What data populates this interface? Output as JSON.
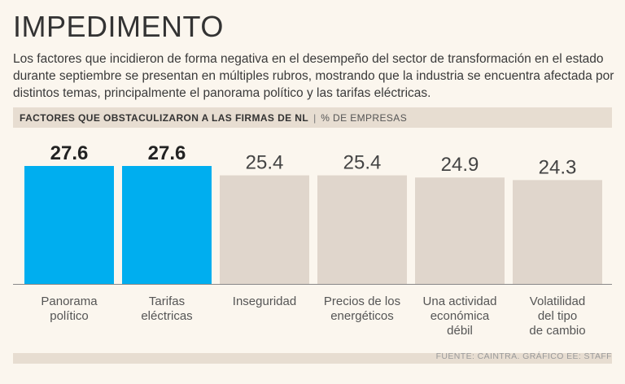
{
  "header": {
    "title": "IMPEDIMENTO",
    "subtitle": "Los factores que incidieron de forma negativa en el desempeño del sector de transformación en el estado durante septiembre se presentan en múltiples rubros, mostrando que la industria se encuentra afectada por distintos temas, principalmente el panorama político y las tarifas eléctricas."
  },
  "chart_header": {
    "label": "FACTORES QUE OBSTACULIZARON A LAS FIRMAS DE NL",
    "separator": "|",
    "unit": "% DE EMPRESAS"
  },
  "footer": {
    "source": "FUENTE: CAINTRA.  GRÁFICO EE: STAFF"
  },
  "colors": {
    "highlight": "#00aeef",
    "default": "#e0d6cc",
    "axis": "#888888"
  },
  "chart_data": {
    "type": "bar",
    "title": "FACTORES QUE OBSTACULIZARON A LAS FIRMAS DE NL",
    "ylabel": "% DE EMPRESAS",
    "ylim": [
      0,
      27.6
    ],
    "categories": [
      [
        "Panorama",
        "político"
      ],
      [
        "Tarifas",
        "eléctricas"
      ],
      [
        "Inseguridad"
      ],
      [
        "Precios de los",
        "energéticos"
      ],
      [
        "Una actividad",
        "económica",
        "débil"
      ],
      [
        "Volatilidad",
        "del tipo",
        "de cambio"
      ]
    ],
    "values": [
      27.6,
      27.6,
      25.4,
      25.4,
      24.9,
      24.3
    ],
    "value_labels": [
      "27.6",
      "27.6",
      "25.4",
      "25.4",
      "24.9",
      "24.3"
    ],
    "highlighted": [
      true,
      true,
      false,
      false,
      false,
      false
    ]
  }
}
